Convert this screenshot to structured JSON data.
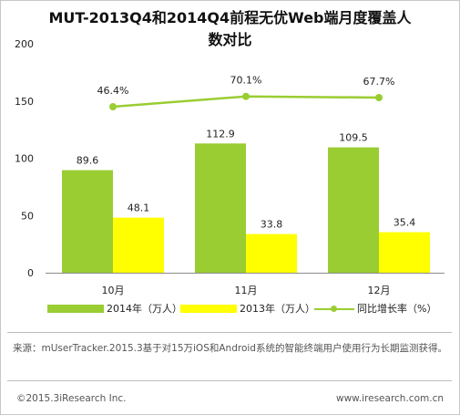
{
  "title_line1": "MUT-2013Q4和2014Q4前程无优Web端月度覆盖人",
  "title_line2": "数对比",
  "colors": {
    "series_2014": "#9acd32",
    "series_2013": "#ffff00",
    "growth_line": "#9acd32"
  },
  "legend": {
    "s2014": "2014年（万人）",
    "s2013": "2013年（万人）",
    "growth": "同比增长率（%）"
  },
  "source": "来源：mUserTracker.2015.3基于对15万iOS和Android系统的智能终端用户使用行为长期监测获得。",
  "copyright": "©2015.3iResearch Inc.",
  "website": "www.iresearch.com.cn",
  "chart_data": {
    "type": "bar",
    "categories": [
      "10月",
      "11月",
      "12月"
    ],
    "series": [
      {
        "name": "2014年（万人）",
        "values": [
          89.6,
          112.9,
          109.5
        ],
        "color": "#9acd32"
      },
      {
        "name": "2013年（万人）",
        "values": [
          48.1,
          33.8,
          35.4
        ],
        "color": "#ffff00"
      }
    ],
    "line_series": {
      "name": "同比增长率（%）",
      "values": [
        46.4,
        70.1,
        67.7
      ],
      "labels": [
        "46.4%",
        "70.1%",
        "67.7%"
      ],
      "plotted_at": [
        145,
        154,
        153
      ]
    },
    "ylim": [
      0,
      200
    ],
    "yticks": [
      0,
      50,
      100,
      150,
      200
    ],
    "grid": false,
    "legend_position": "bottom"
  }
}
